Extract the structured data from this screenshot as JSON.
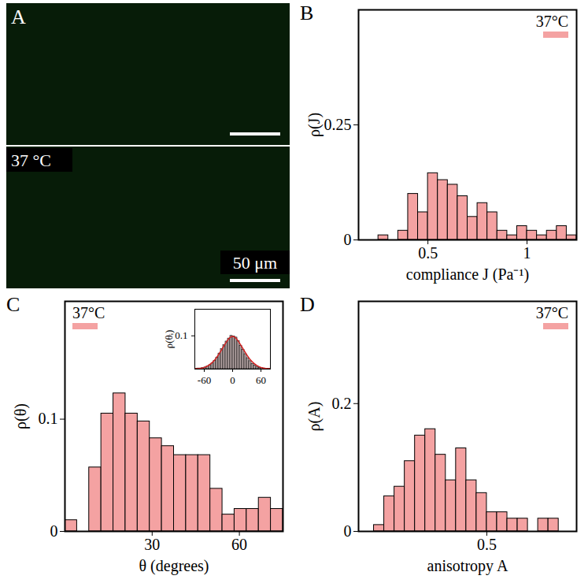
{
  "image_panel": {
    "panel": "A",
    "label": "37 °C",
    "scale_bar": "50 μm"
  },
  "chart_data": [
    {
      "type": "histogram",
      "panel": "B",
      "xlabel": "compliance J (Pa⁻¹)",
      "ylabel": "ρ(J)",
      "bins": [
        0.25,
        0.3,
        0.35,
        0.4,
        0.45,
        0.5,
        0.55,
        0.6,
        0.65,
        0.7,
        0.75,
        0.8,
        0.85,
        0.9,
        0.95,
        1.0,
        1.05,
        1.1,
        1.15,
        1.2,
        1.25
      ],
      "series": [
        {
          "name": "37°C",
          "color": "#f4a2a2",
          "values": [
            0.01,
            0,
            0.02,
            0.1,
            0.06,
            0.145,
            0.13,
            0.12,
            0.095,
            0.05,
            0.08,
            0.06,
            0.02,
            0.01,
            0.03,
            0.02,
            0.01,
            0.02,
            0.03,
            0.01
          ]
        }
      ],
      "xlim": [
        0.15,
        1.25
      ],
      "xticks": [
        0.5,
        1
      ],
      "ylim": [
        0,
        0.5
      ],
      "yticks": [
        0,
        0.25
      ],
      "legend": "top-right"
    },
    {
      "type": "histogram",
      "panel": "C",
      "xlabel": "θ (degrees)",
      "ylabel": "ρ(θ)",
      "bins": [
        0,
        4.17,
        8.33,
        12.5,
        16.67,
        20.83,
        25,
        29.17,
        33.33,
        37.5,
        41.67,
        45.83,
        50,
        54.17,
        58.33,
        62.5,
        66.67,
        70.83,
        75
      ],
      "series": [
        {
          "name": "37°C",
          "color": "#f4a2a2",
          "values": [
            0.01,
            0,
            0.057,
            0.105,
            0.123,
            0.105,
            0.098,
            0.083,
            0.076,
            0.068,
            0.068,
            0.068,
            0.038,
            0.015,
            0.02,
            0.02,
            0.03,
            0.02
          ]
        }
      ],
      "xlim": [
        0,
        75
      ],
      "xticks": [
        30,
        60
      ],
      "ylim": [
        0,
        0.205
      ],
      "yticks": [
        0,
        0.1
      ],
      "legend": "top-left",
      "inset": {
        "type": "histogram",
        "ylabel": "ρ(θᵢ)",
        "bins": [
          -80,
          -75,
          -70,
          -65,
          -60,
          -55,
          -50,
          -45,
          -40,
          -35,
          -30,
          -25,
          -20,
          -15,
          -10,
          -5,
          0,
          5,
          10,
          15,
          20,
          25,
          30,
          35,
          40,
          45,
          50,
          55,
          60,
          65,
          70,
          75,
          80
        ],
        "series": [
          {
            "type": "bar",
            "color": "#b3a3a3",
            "values": [
              0.001,
              0.002,
              0.002,
              0.004,
              0.005,
              0.008,
              0.012,
              0.017,
              0.025,
              0.035,
              0.047,
              0.06,
              0.072,
              0.083,
              0.092,
              0.1,
              0.098,
              0.095,
              0.084,
              0.07,
              0.058,
              0.045,
              0.033,
              0.024,
              0.016,
              0.011,
              0.007,
              0.004,
              0.003,
              0.002,
              0.001,
              0.001
            ]
          },
          {
            "type": "line",
            "color": "#d42020",
            "x": [
              -80,
              -70,
              -60,
              -50,
              -40,
              -30,
              -20,
              -10,
              0,
              10,
              20,
              30,
              40,
              50,
              60,
              70,
              80
            ],
            "values": [
              0.001,
              0.002,
              0.005,
              0.012,
              0.024,
              0.043,
              0.066,
              0.088,
              0.098,
              0.088,
              0.066,
              0.043,
              0.024,
              0.012,
              0.005,
              0.002,
              0.001
            ]
          }
        ],
        "xlim": [
          -80,
          80
        ],
        "xticks": [
          -60,
          0,
          60
        ],
        "ylim": [
          0,
          0.18
        ],
        "yticks": [
          0.1
        ]
      }
    },
    {
      "type": "histogram",
      "panel": "D",
      "xlabel": "anisotropy A",
      "ylabel": "ρ(A)",
      "bins": [
        0.06,
        0.1,
        0.14,
        0.18,
        0.22,
        0.26,
        0.3,
        0.34,
        0.38,
        0.42,
        0.46,
        0.5,
        0.54,
        0.58,
        0.62,
        0.66,
        0.7,
        0.74,
        0.78
      ],
      "series": [
        {
          "name": "37°C",
          "color": "#f4a2a2",
          "values": [
            0.01,
            0.055,
            0.07,
            0.11,
            0.15,
            0.16,
            0.12,
            0.08,
            0.13,
            0.08,
            0.06,
            0.03,
            0.03,
            0.02,
            0.02,
            0,
            0.02,
            0.02
          ]
        }
      ],
      "xlim": [
        0,
        0.85
      ],
      "xticks": [
        0.5
      ],
      "ylim": [
        0,
        0.36
      ],
      "yticks": [
        0,
        0.2
      ],
      "legend": "top-right"
    }
  ]
}
